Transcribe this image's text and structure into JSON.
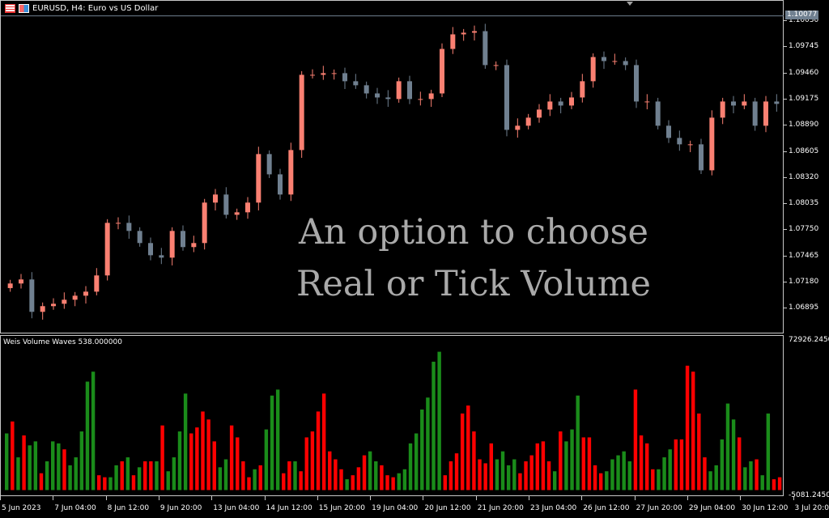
{
  "header": {
    "title": "EURUSD, H4:  Euro vs US Dollar",
    "icons": [
      "list-icon",
      "save-icon"
    ]
  },
  "indicator": {
    "title": "Weis Volume Waves 538.000000",
    "max_label": "72926.2450",
    "min_label": "-5081.2450"
  },
  "overlay": {
    "line1": "An option to choose",
    "line2": "Real or Tick Volume"
  },
  "current_price": "1.10077",
  "colors": {
    "bull": "#fa8072",
    "bear": "#708090",
    "vol_up": "#1a8c1a",
    "vol_down": "#ff0000",
    "overlay": "#a9a9a9"
  },
  "chart_data": {
    "type": "candlestick",
    "price_axis": [
      "1.10030",
      "1.09745",
      "1.09460",
      "1.09175",
      "1.08890",
      "1.08605",
      "1.08320",
      "1.08035",
      "1.07750",
      "1.07465",
      "1.07180",
      "1.06895"
    ],
    "time_axis": [
      "5 Jun 2023",
      "7 Jun 04:00",
      "8 Jun 12:00",
      "9 Jun 20:00",
      "13 Jun 04:00",
      "14 Jun 12:00",
      "15 Jun 20:00",
      "19 Jun 04:00",
      "20 Jun 12:00",
      "21 Jun 20:00",
      "23 Jun 04:00",
      "26 Jun 12:00",
      "27 Jun 20:00",
      "29 Jun 04:00",
      "30 Jun 12:00",
      "3 Jul 20:00"
    ],
    "closes": [
      1.0716,
      1.07204,
      1.06851,
      1.06913,
      1.06939,
      1.06983,
      1.07027,
      1.07071,
      1.07248,
      1.07821,
      1.07821,
      1.07733,
      1.07601,
      1.07468,
      1.07442,
      1.07733,
      1.07557,
      1.07601,
      1.08042,
      1.0813,
      1.07909,
      1.07936,
      1.08042,
      1.08571,
      1.0835,
      1.0813,
      1.08615,
      1.09435,
      1.09435,
      1.09453,
      1.09453,
      1.09365,
      1.09321,
      1.09232,
      1.09188,
      1.09171,
      1.09365,
      1.09171,
      1.09171,
      1.09232,
      1.09717,
      1.09876,
      1.09894,
      1.09911,
      1.09541,
      1.09541,
      1.08835,
      1.0888,
      1.08968,
      1.09056,
      1.09144,
      1.091,
      1.09188,
      1.09365,
      1.09629,
      1.09585,
      1.09585,
      1.09541,
      1.09144,
      1.09144,
      1.0888,
      1.08747,
      1.08677,
      1.08677,
      1.08394,
      1.08968,
      1.09144,
      1.091,
      1.09144,
      1.0888,
      1.09144,
      1.09118
    ],
    "volume_range": [
      -5081.245,
      72926.245
    ],
    "volumes": [
      26000,
      32000,
      14000,
      25000,
      20000,
      22000,
      6000,
      12000,
      22000,
      21000,
      18000,
      10000,
      14000,
      27000,
      52000,
      57000,
      5000,
      4000,
      4000,
      10000,
      12000,
      14000,
      5000,
      9000,
      12000,
      12000,
      12000,
      30000,
      7000,
      14000,
      27000,
      46000,
      26000,
      29000,
      37000,
      33000,
      22000,
      9000,
      13000,
      30000,
      24000,
      12000,
      4000,
      8000,
      10000,
      28000,
      45000,
      48000,
      6000,
      12000,
      12000,
      7000,
      24000,
      27000,
      37000,
      46000,
      17000,
      13000,
      8000,
      3000,
      5000,
      9000,
      15000,
      17000,
      12000,
      10000,
      5000,
      4000,
      6000,
      8000,
      21000,
      26000,
      38000,
      44000,
      62000,
      67000,
      5000,
      12000,
      16000,
      36000,
      40000,
      27000,
      13000,
      11000,
      21000,
      13000,
      17000,
      10000,
      13000,
      6000,
      12000,
      15000,
      21000,
      22000,
      12000,
      7000,
      27000,
      22000,
      28000,
      45000,
      24000,
      24000,
      10000,
      6000,
      7000,
      13000,
      15000,
      17000,
      12000,
      48000,
      25000,
      21000,
      8000,
      8000,
      14000,
      18000,
      23000,
      23000,
      60000,
      57000,
      36000,
      14000,
      7000,
      10000,
      23000,
      41000,
      33000,
      24000,
      9000,
      12000,
      13000,
      5000,
      36000,
      3000,
      4000
    ],
    "volume_dirs": "GRGRGGRGGGRGGGGGRRGGRGRGRRGRGGGGRRRRRGGRRRRGRGGGRRGRRRRRRRRGRRRGGRRRGGGGGGGGRRRRRRRRRGGGGRRRRRRGRGGGRRRRGGGGGRRRRGGGRRRRRRGGGGGRGGRGGRR"
  }
}
